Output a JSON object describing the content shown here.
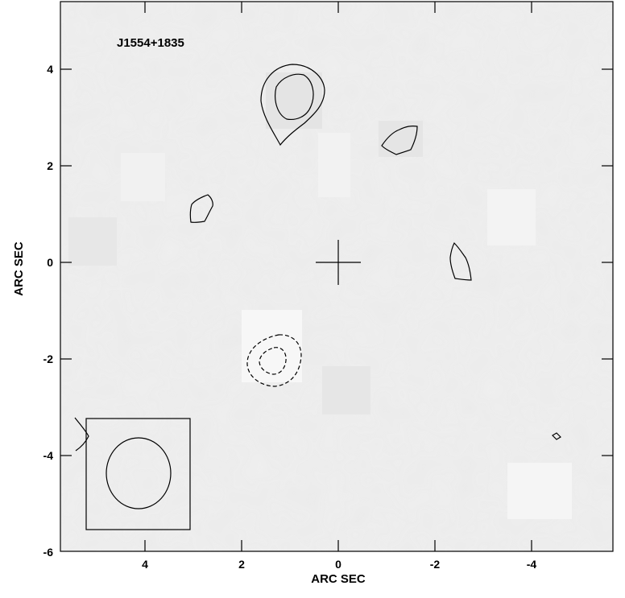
{
  "source_label": "J1554+1835",
  "chart_data": {
    "type": "contour",
    "xlabel": "ARC SEC",
    "ylabel": "ARC SEC",
    "xlim": [
      5.75,
      -5.75
    ],
    "ylim": [
      -6,
      5.4
    ],
    "x_ticks": [
      "4",
      "2",
      "0",
      "-2",
      "-4"
    ],
    "y_ticks": [
      "4",
      "2",
      "0",
      "-2",
      "-4",
      "-6"
    ],
    "center_marker": [
      0,
      0
    ],
    "colors": {
      "frame": "#000000",
      "background": "#ebebeb"
    }
  }
}
